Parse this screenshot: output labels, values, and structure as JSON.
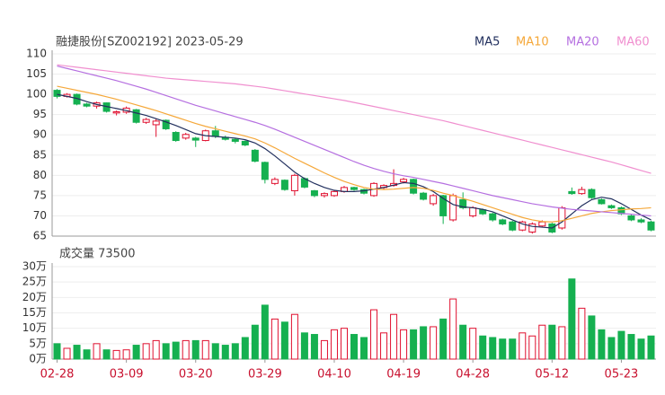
{
  "chart_data": [
    {
      "type": "candlestick",
      "title": "融捷股份[SZ002192] 2023-05-29",
      "up_color": "#e0102f",
      "down_color": "#15b050",
      "ylim": [
        65,
        110
      ],
      "yticks": [
        65,
        70,
        75,
        80,
        85,
        90,
        95,
        100,
        105,
        110
      ],
      "grid": true,
      "legend": "top-right",
      "open": [
        101,
        99.5,
        100,
        97.6,
        97.1,
        97.9,
        95.4,
        95.6,
        96.2,
        93.1,
        92.5,
        93.6,
        90.6,
        89.2,
        89.2,
        88.6,
        91,
        89.4,
        88.9,
        88.4,
        86.2,
        83.2,
        78,
        78.8,
        76.2,
        79.2,
        76.2,
        75,
        75,
        76,
        77,
        76.5,
        75,
        77,
        77.5,
        78.4,
        79,
        75.6,
        73,
        75,
        69,
        74,
        70,
        71.5,
        70.5,
        69,
        68.5,
        66.5,
        66,
        67.5,
        68,
        67,
        76,
        75.5,
        76.5,
        74,
        72.5,
        72,
        70,
        69,
        68.5
      ],
      "high": [
        101.3,
        100.3,
        100.2,
        97.9,
        98.2,
        98,
        96,
        97,
        96.4,
        94.2,
        94,
        93.8,
        90.9,
        90.5,
        89.5,
        91.3,
        92.2,
        89.8,
        89.2,
        88.6,
        86.5,
        83.4,
        79.5,
        79,
        80.4,
        79.5,
        76.4,
        75.8,
        76.3,
        77.4,
        77.2,
        76.7,
        78.3,
        77.8,
        81.5,
        79.4,
        79.2,
        75.9,
        75.4,
        75.2,
        75.5,
        75.8,
        72.4,
        71.8,
        70.8,
        69.3,
        68.8,
        68.8,
        68.4,
        68.9,
        68.3,
        72.4,
        77,
        77.2,
        76.8,
        74.3,
        72.8,
        72.3,
        70.3,
        69.4,
        68.8
      ],
      "low": [
        99,
        99.2,
        97.3,
        96.8,
        96.5,
        95.5,
        94.8,
        95.2,
        92.8,
        92.7,
        89.5,
        91.2,
        88.3,
        88.8,
        87,
        88.4,
        89.2,
        88.6,
        87.9,
        87.2,
        83.2,
        78,
        77.6,
        76.2,
        75,
        76.8,
        74.6,
        74.5,
        74.7,
        75.7,
        76.2,
        75.3,
        74.7,
        76.6,
        77.2,
        78,
        75.3,
        73.8,
        72.5,
        68,
        68.6,
        71.6,
        69.6,
        70.2,
        68.6,
        67.7,
        66.2,
        66.2,
        65.6,
        67.2,
        65.7,
        66.6,
        75.2,
        75.2,
        74.2,
        72.8,
        71.7,
        70.2,
        68.7,
        68.2,
        66.2
      ],
      "close": [
        99.5,
        100,
        97.6,
        97.1,
        97.9,
        95.8,
        95.7,
        96.6,
        93.1,
        93.8,
        93.4,
        91.5,
        88.6,
        90.1,
        88.7,
        91,
        89.6,
        88.9,
        88.4,
        87.5,
        83.5,
        79,
        79,
        76.5,
        80,
        77.1,
        75,
        75.5,
        76,
        77,
        76.5,
        75.6,
        78,
        77.5,
        78,
        79,
        75.6,
        74.1,
        75,
        70,
        75,
        72,
        72,
        70.5,
        69,
        68,
        66.5,
        68.5,
        68,
        68.5,
        66,
        72,
        75.5,
        76.5,
        74.5,
        73,
        72,
        70.5,
        69,
        68.5,
        66.5
      ],
      "series": [
        {
          "name": "MA5",
          "color": "#22305e",
          "values": [
            100.0,
            99.5,
            99.0,
            98.2,
            97.5,
            97.0,
            96.5,
            96.0,
            95.4,
            94.8,
            94.0,
            93.2,
            92.3,
            91.3,
            90.3,
            89.8,
            89.6,
            89.4,
            89.2,
            88.8,
            88.0,
            86.6,
            84.8,
            82.8,
            80.8,
            79.2,
            78.0,
            77.0,
            76.3,
            76.0,
            76.0,
            76.2,
            76.6,
            77.0,
            77.6,
            78.2,
            78.0,
            77.2,
            76.0,
            74.3,
            72.8,
            72.2,
            72.0,
            71.6,
            71.0,
            70.0,
            69.0,
            68.0,
            67.4,
            67.2,
            67.0,
            68.5,
            70.5,
            72.5,
            74.0,
            74.6,
            74.2,
            73.0,
            71.6,
            70.2,
            69.0
          ]
        },
        {
          "name": "MA10",
          "color": "#f5a83a",
          "values": [
            102.0,
            101.5,
            101.0,
            100.5,
            100.0,
            99.4,
            98.8,
            98.1,
            97.4,
            96.7,
            96.0,
            95.2,
            94.4,
            93.6,
            92.8,
            92.1,
            91.5,
            90.9,
            90.3,
            89.7,
            89.0,
            88.0,
            86.8,
            85.5,
            84.2,
            83.0,
            81.8,
            80.6,
            79.5,
            78.5,
            77.7,
            77.0,
            76.6,
            76.5,
            76.6,
            76.8,
            77.0,
            76.8,
            76.3,
            75.6,
            75.0,
            74.3,
            73.6,
            72.8,
            72.0,
            71.2,
            70.4,
            69.6,
            69.0,
            68.6,
            68.5,
            68.8,
            69.4,
            70.0,
            70.6,
            71.0,
            71.3,
            71.5,
            71.7,
            71.8,
            72.0
          ]
        },
        {
          "name": "MA20",
          "color": "#b56fe0",
          "values": [
            107.0,
            106.4,
            105.8,
            105.2,
            104.6,
            104.0,
            103.4,
            102.7,
            102.0,
            101.3,
            100.5,
            99.7,
            98.9,
            98.1,
            97.3,
            96.6,
            95.9,
            95.2,
            94.5,
            93.8,
            93.1,
            92.3,
            91.4,
            90.4,
            89.4,
            88.4,
            87.4,
            86.4,
            85.4,
            84.4,
            83.4,
            82.5,
            81.7,
            81.0,
            80.4,
            79.9,
            79.5,
            79.0,
            78.5,
            78.0,
            77.4,
            76.8,
            76.2,
            75.6,
            75.0,
            74.5,
            74.0,
            73.5,
            73.0,
            72.6,
            72.2,
            71.9,
            71.6,
            71.4,
            71.2,
            71.0,
            70.8,
            70.6,
            70.4,
            70.2,
            70.0
          ]
        },
        {
          "name": "MA60",
          "color": "#f08fcf",
          "values": [
            107.3,
            107.0,
            106.7,
            106.4,
            106.1,
            105.8,
            105.5,
            105.2,
            104.9,
            104.6,
            104.3,
            104.0,
            103.8,
            103.6,
            103.4,
            103.2,
            103.0,
            102.8,
            102.6,
            102.3,
            102.0,
            101.7,
            101.3,
            100.9,
            100.5,
            100.1,
            99.7,
            99.3,
            98.9,
            98.5,
            98.0,
            97.5,
            97.0,
            96.5,
            96.0,
            95.5,
            95.0,
            94.5,
            94.0,
            93.5,
            92.9,
            92.3,
            91.7,
            91.1,
            90.5,
            89.9,
            89.3,
            88.7,
            88.1,
            87.5,
            86.9,
            86.3,
            85.7,
            85.1,
            84.5,
            83.9,
            83.3,
            82.6,
            81.9,
            81.2,
            80.5
          ]
        }
      ]
    },
    {
      "type": "bar",
      "title": "成交量 73500",
      "categories": [
        "02-28",
        null,
        null,
        null,
        null,
        null,
        null,
        "03-09",
        null,
        null,
        null,
        null,
        null,
        null,
        "03-20",
        null,
        null,
        null,
        null,
        null,
        null,
        "03-29",
        null,
        null,
        null,
        null,
        null,
        null,
        "04-10",
        null,
        null,
        null,
        null,
        null,
        null,
        "04-19",
        null,
        null,
        null,
        null,
        null,
        null,
        "04-28",
        null,
        null,
        null,
        null,
        null,
        null,
        null,
        "05-12",
        null,
        null,
        null,
        null,
        null,
        null,
        "05-23",
        null,
        null,
        null
      ],
      "values": [
        5,
        3.5,
        4.5,
        3,
        5,
        3,
        2.8,
        3,
        4.5,
        5,
        6,
        5,
        5.5,
        6,
        6,
        6,
        5,
        4.5,
        5,
        7,
        11,
        17.5,
        13,
        12,
        14.5,
        8.5,
        8,
        6,
        9.5,
        10,
        8,
        7,
        16,
        8.5,
        14.5,
        9.5,
        9.5,
        10.5,
        10.5,
        13,
        19.5,
        11,
        10,
        7.5,
        7,
        6.5,
        6.5,
        8.5,
        7.5,
        11,
        11,
        10.5,
        26,
        16.5,
        14,
        9.5,
        7,
        9,
        8,
        6.5,
        7.5
      ],
      "ylim": [
        0,
        30
      ],
      "yticks": [
        {
          "value": 0,
          "label": "0万"
        },
        {
          "value": 5,
          "label": "5万"
        },
        {
          "value": 10,
          "label": "10万"
        },
        {
          "value": 15,
          "label": "15万"
        },
        {
          "value": 20,
          "label": "20万"
        },
        {
          "value": 25,
          "label": "25万"
        },
        {
          "value": 30,
          "label": "30万"
        }
      ],
      "grid": true
    }
  ]
}
